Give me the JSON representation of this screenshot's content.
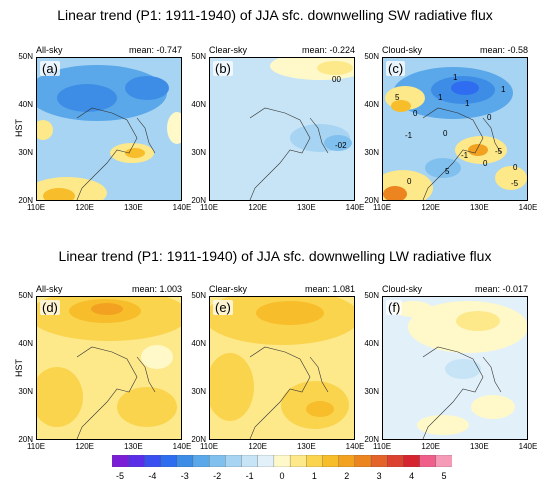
{
  "titles": {
    "sw": "Linear trend (P1: 1911-1940) of JJA sfc. downwelling SW radiative flux",
    "lw": "Linear trend (P1: 1911-1940) of JJA sfc. downwelling LW radiative flux"
  },
  "axis": {
    "ylabel": "HST",
    "yticks": [
      "50N",
      "40N",
      "30N",
      "20N"
    ],
    "xticks": [
      "110E",
      "120E",
      "130E",
      "140E"
    ],
    "lon_range": [
      110,
      140
    ],
    "lat_range": [
      20,
      50
    ]
  },
  "colorbar": {
    "labels": [
      "-5",
      "-4",
      "-3",
      "-2",
      "-1",
      "0",
      "1",
      "2",
      "3",
      "4",
      "5"
    ],
    "colors": [
      "#7a1fd6",
      "#5a2ee8",
      "#3a4ff0",
      "#2f6df0",
      "#3d8de6",
      "#5aa8ea",
      "#80c0ef",
      "#a6d4f2",
      "#c6e4f6",
      "#e2f1f9",
      "#fff8c8",
      "#fde88a",
      "#fbd44e",
      "#f7bd2a",
      "#f2a220",
      "#ec8420",
      "#e4632a",
      "#dc4230",
      "#d42530",
      "#ef5f8a",
      "#f59bb8"
    ]
  },
  "panels": [
    {
      "label": "All-sky",
      "mean": "mean: -0.747",
      "tag": "(a)",
      "contour_labels": []
    },
    {
      "label": "Clear-sky",
      "mean": "mean: -0.224",
      "tag": "(b)",
      "contour_labels": [
        "00",
        "-02"
      ]
    },
    {
      "label": "Cloud-sky",
      "mean": "mean: -0.58",
      "tag": "(c)",
      "contour_labels": [
        "1",
        "1",
        "1",
        "1",
        "0",
        "0",
        "5",
        "-1",
        "0",
        "-1",
        "0",
        "5",
        "0",
        "0",
        "-5",
        "-5"
      ]
    },
    {
      "label": "All-sky",
      "mean": "mean: 1.003",
      "tag": "(d)",
      "contour_labels": []
    },
    {
      "label": "Clear-sky",
      "mean": "mean: 1.081",
      "tag": "(e)",
      "contour_labels": []
    },
    {
      "label": "Cloud-sky",
      "mean": "mean: -0.017",
      "tag": "(f)",
      "contour_labels": []
    }
  ],
  "chart_data": {
    "type": "heatmap",
    "colorbar_range": [
      -5,
      5
    ],
    "panels": [
      "(a)",
      "(b)",
      "(c)",
      "(d)",
      "(e)",
      "(f)"
    ]
  }
}
